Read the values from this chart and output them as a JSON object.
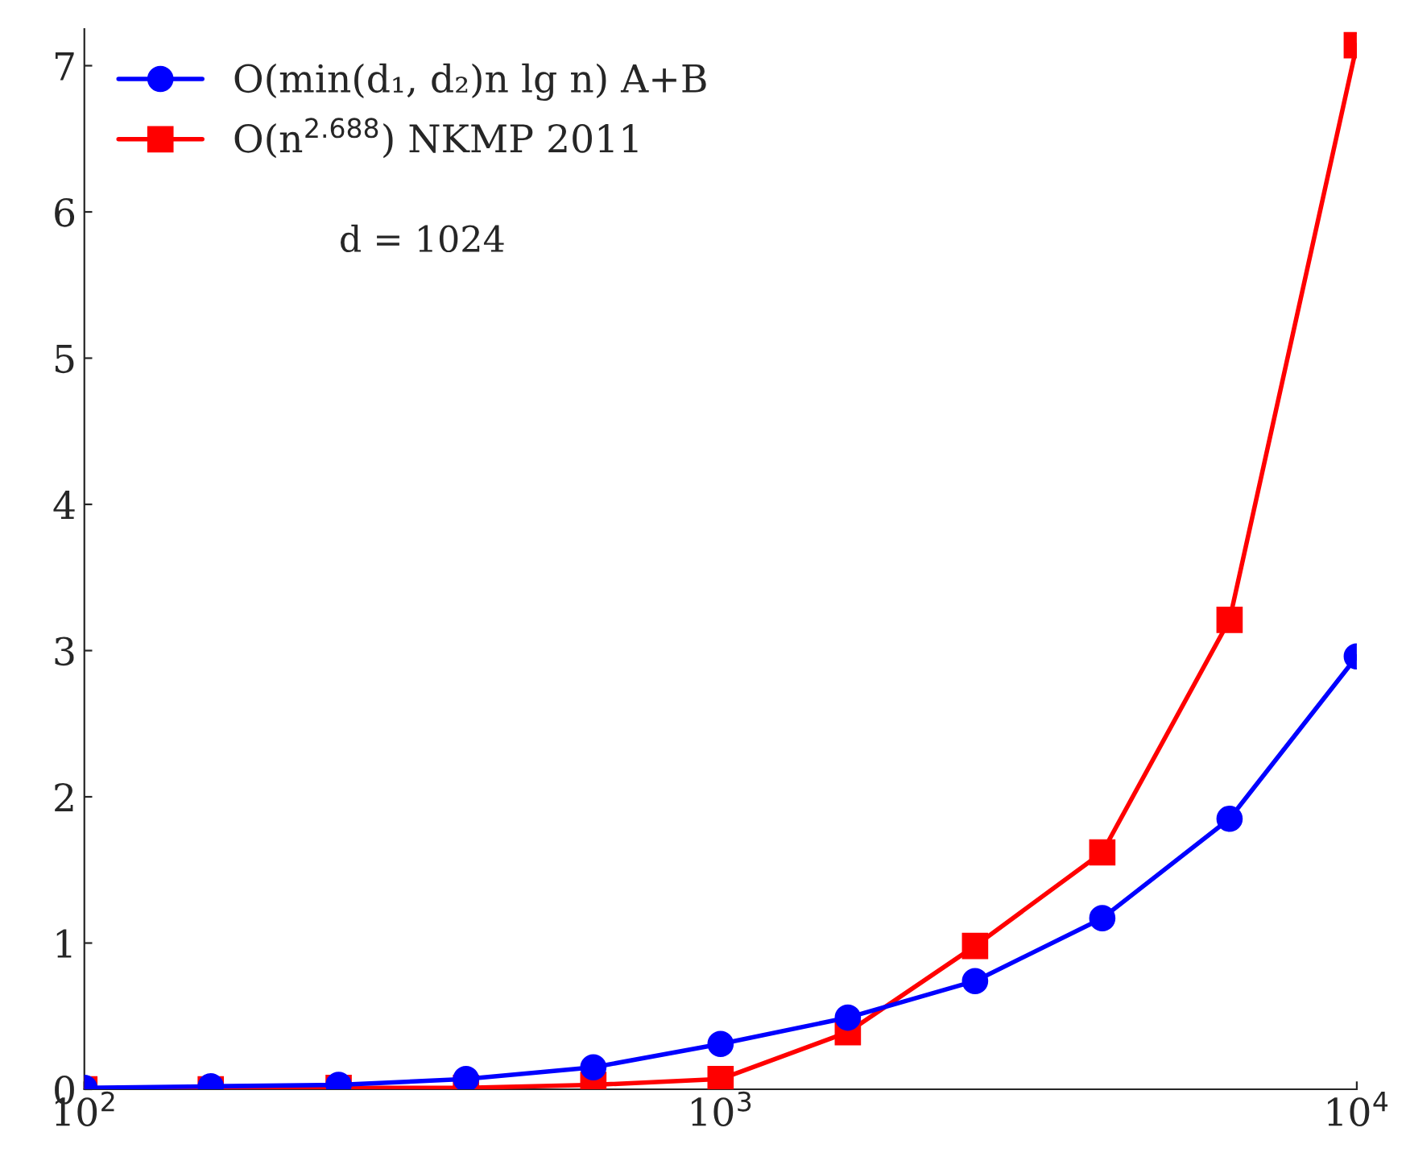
{
  "chart_data": {
    "type": "line",
    "log": "x",
    "x": [
      100,
      158,
      251,
      398,
      631,
      1000,
      1585,
      2512,
      3981,
      6310,
      10000
    ],
    "series": [
      {
        "name": "O(min(d₁, d₂)n lg n) A+B",
        "color": "#0000ff",
        "marker": "circle",
        "values": [
          0.01,
          0.02,
          0.03,
          0.07,
          0.15,
          0.31,
          0.49,
          0.74,
          1.17,
          1.85,
          2.96
        ]
      },
      {
        "name": "O(n$^{2.688}$) NKMP 2011",
        "color": "#ff0000",
        "marker": "square",
        "values": [
          0,
          0,
          0.01,
          0.01,
          0.03,
          0.07,
          0.39,
          0.98,
          1.62,
          3.21,
          7.14
        ]
      }
    ],
    "xlim": [
      100,
      10000
    ],
    "ylim": [
      0,
      7.25
    ],
    "xticks": [
      {
        "value": 100,
        "label": "10$^{2}$"
      },
      {
        "value": 1000,
        "label": "10$^{3}$"
      },
      {
        "value": 10000,
        "label": "10$^{4}$"
      }
    ],
    "yticks": [
      0,
      1,
      2,
      3,
      4,
      5,
      6,
      7
    ],
    "annotations": [
      "d = 1024"
    ],
    "legend": "top left",
    "grid": false,
    "line_style": "solid"
  }
}
